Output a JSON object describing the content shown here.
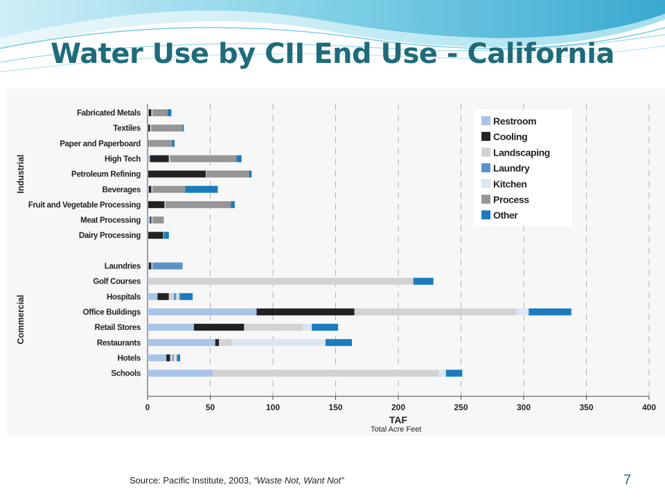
{
  "slide": {
    "title": "Water Use by CII End Use - California",
    "source_prefix": "Source: Pacific Institute, 2003, ",
    "source_italic": "“Waste Not, Want Not”",
    "page_number": "7",
    "unit_note": "Total Acre Feet"
  },
  "colors": {
    "title": "#1f6b7a",
    "Restroom": "#a9c4e6",
    "Cooling": "#222222",
    "Landscaping": "#d2d2d2",
    "Laundry": "#5b93c9",
    "Kitchen": "#dce6f3",
    "Process": "#969696",
    "Other": "#1a7bbf"
  },
  "chart_data": {
    "type": "bar",
    "orientation": "horizontal",
    "stacked": true,
    "xlabel": "TAF",
    "ylabel": "",
    "xlim": [
      0,
      400
    ],
    "xticks": [
      0,
      50,
      100,
      150,
      200,
      250,
      300,
      350,
      400
    ],
    "grid": "vertical dashed",
    "legend_position": "top-right",
    "groups": [
      {
        "name": "Industrial",
        "categories": [
          "Fabricated Metals",
          "Textiles",
          "Paper and Paperboard",
          "High Tech",
          "Petroleum Refining",
          "Beverages",
          "Fruit and Vegetable Processing",
          "Meat Processing",
          "Dairy Processing"
        ]
      },
      {
        "name": "Commercial",
        "categories": [
          "Laundries",
          "Golf Courses",
          "Hospitals",
          "Office Buildings",
          "Retail Stores",
          "Restaurants",
          "Hotels",
          "Schools"
        ]
      }
    ],
    "categories": [
      "Fabricated Metals",
      "Textiles",
      "Paper and Paperboard",
      "High Tech",
      "Petroleum Refining",
      "Beverages",
      "Fruit and Vegetable Processing",
      "Meat Processing",
      "Dairy Processing",
      "Laundries",
      "Golf Courses",
      "Hospitals",
      "Office Buildings",
      "Retail Stores",
      "Restaurants",
      "Hotels",
      "Schools"
    ],
    "series": [
      {
        "name": "Restroom",
        "values": [
          1,
          0.5,
          0.5,
          2,
          0.5,
          1,
          0.5,
          2,
          0.5,
          1,
          1,
          8,
          87,
          37,
          54,
          15,
          52
        ]
      },
      {
        "name": "Cooling",
        "values": [
          2,
          1.5,
          0.5,
          15,
          46,
          2,
          13,
          1,
          12,
          2,
          0,
          9,
          78,
          40,
          3,
          3,
          0
        ]
      },
      {
        "name": "Landscaping",
        "values": [
          1,
          1,
          0.5,
          1,
          0.5,
          1,
          1,
          1,
          0.5,
          1,
          211,
          4,
          129,
          47,
          10,
          2,
          180
        ]
      },
      {
        "name": "Laundry",
        "values": [
          0,
          0,
          0,
          0,
          0,
          0,
          0,
          0,
          0,
          24,
          0,
          2,
          0,
          0,
          0,
          1,
          0
        ]
      },
      {
        "name": "Kitchen",
        "values": [
          0,
          0,
          0,
          0,
          0,
          0,
          0,
          0,
          0,
          0,
          0,
          2,
          10,
          7,
          75,
          2,
          6
        ]
      },
      {
        "name": "Process",
        "values": [
          12,
          25,
          18,
          53,
          34,
          26,
          52,
          9,
          0,
          0,
          0,
          1,
          0,
          0,
          0,
          1,
          0
        ]
      },
      {
        "name": "Other",
        "values": [
          3,
          1,
          2,
          4,
          2,
          26,
          3,
          0,
          4,
          0,
          16,
          10,
          34,
          21,
          21,
          2,
          13
        ]
      }
    ]
  }
}
